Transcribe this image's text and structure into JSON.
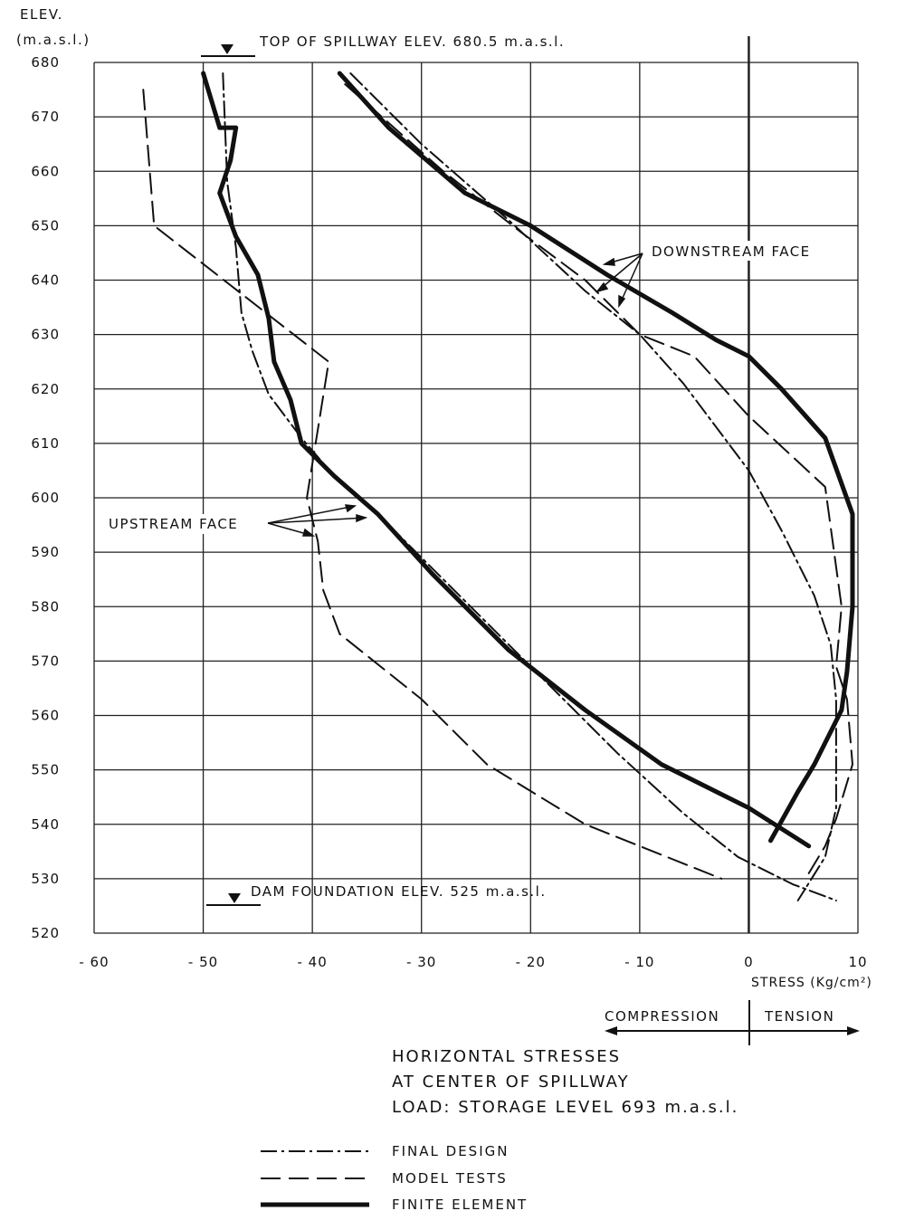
{
  "chart_data": {
    "type": "line",
    "title_lines": [
      "HORIZONTAL STRESSES",
      "AT CENTER OF SPILLWAY",
      "LOAD: STORAGE LEVEL  693 m.a.s.l."
    ],
    "ylabel": [
      "ELEV.",
      "(m.a.s.l.)"
    ],
    "xlabel": "STRESS (Kg/cm²)",
    "xlim": [
      -60,
      10
    ],
    "ylim": [
      520,
      680
    ],
    "xticks": [
      -60,
      -50,
      -40,
      -30,
      -20,
      -10,
      0,
      10
    ],
    "yticks": [
      520,
      530,
      540,
      550,
      560,
      570,
      580,
      590,
      600,
      610,
      620,
      630,
      640,
      650,
      660,
      670,
      680
    ],
    "grid": true,
    "annotations": {
      "top_spillway": "TOP OF SPILLWAY ELEV. 680.5 m.a.s.l.",
      "dam_foundation": "DAM FOUNDATION ELEV. 525 m.a.s.l.",
      "downstream_face": "DOWNSTREAM FACE",
      "upstream_face": "UPSTREAM FACE",
      "compression": "COMPRESSION",
      "tension": "TENSION"
    },
    "legend": [
      {
        "label": "FINAL DESIGN",
        "style": "dashdot"
      },
      {
        "label": "MODEL TESTS",
        "style": "dashed"
      },
      {
        "label": "FINITE ELEMENT",
        "style": "solid-thick"
      }
    ],
    "series": [
      {
        "key": "up-final",
        "style": "dashdot",
        "points": [
          [
            -48.2,
            678
          ],
          [
            -47.8,
            658
          ],
          [
            -47,
            646
          ],
          [
            -46.5,
            634
          ],
          [
            -45.5,
            627
          ],
          [
            -44,
            619
          ],
          [
            -41,
            611
          ],
          [
            -38,
            604
          ],
          [
            -34,
            597
          ],
          [
            -29,
            587
          ],
          [
            -24,
            577
          ],
          [
            -18,
            565
          ],
          [
            -12,
            553
          ],
          [
            -6,
            542
          ],
          [
            -1,
            534
          ],
          [
            4,
            529
          ],
          [
            8,
            526
          ]
        ]
      },
      {
        "key": "up-model",
        "style": "dashed",
        "points": [
          [
            -55.5,
            675
          ],
          [
            -54.5,
            650
          ],
          [
            -38.5,
            625
          ],
          [
            -40.5,
            600
          ],
          [
            -39.5,
            592
          ],
          [
            -39,
            583
          ],
          [
            -37.5,
            575
          ],
          [
            -30,
            563
          ],
          [
            -24,
            551
          ],
          [
            -15,
            540
          ],
          [
            -2.5,
            530
          ]
        ]
      },
      {
        "key": "up-fe",
        "style": "solid-thick",
        "points": [
          [
            -50,
            678
          ],
          [
            -48.5,
            668
          ],
          [
            -47,
            668
          ],
          [
            -47.5,
            662
          ],
          [
            -48.5,
            656
          ],
          [
            -47,
            648
          ],
          [
            -45,
            641
          ],
          [
            -44,
            633
          ],
          [
            -43.5,
            625
          ],
          [
            -42,
            618
          ],
          [
            -41,
            610
          ],
          [
            -38,
            604
          ],
          [
            -34,
            597
          ],
          [
            -29,
            586
          ],
          [
            -22,
            572
          ],
          [
            -15,
            561
          ],
          [
            -8,
            551
          ],
          [
            0,
            543
          ],
          [
            5.5,
            536
          ]
        ]
      },
      {
        "key": "ds-final",
        "style": "dashdot",
        "points": [
          [
            -36.5,
            678
          ],
          [
            -30,
            665
          ],
          [
            -22,
            651
          ],
          [
            -15,
            638
          ],
          [
            -10,
            630
          ],
          [
            -6,
            621
          ],
          [
            -3,
            613
          ],
          [
            0,
            605
          ],
          [
            3,
            594
          ],
          [
            6,
            582
          ],
          [
            7.5,
            573
          ],
          [
            8,
            563
          ],
          [
            8,
            550
          ],
          [
            8,
            543
          ],
          [
            7,
            534
          ],
          [
            4.5,
            526
          ]
        ]
      },
      {
        "key": "ds-model",
        "style": "dashed",
        "points": [
          [
            -37,
            676
          ],
          [
            -28,
            660
          ],
          [
            -21,
            649
          ],
          [
            -15,
            640
          ],
          [
            -10,
            630
          ],
          [
            -5,
            626
          ],
          [
            0,
            615
          ],
          [
            7,
            602
          ],
          [
            8.5,
            580
          ],
          [
            8,
            569
          ],
          [
            9,
            563
          ],
          [
            9.5,
            551
          ],
          [
            8,
            541
          ],
          [
            7,
            536
          ],
          [
            5.5,
            531
          ]
        ]
      },
      {
        "key": "ds-fe",
        "style": "solid-thick",
        "points": [
          [
            -37.5,
            678
          ],
          [
            -33,
            668
          ],
          [
            -26,
            656
          ],
          [
            -20,
            650
          ],
          [
            -13,
            641
          ],
          [
            -7,
            634
          ],
          [
            -3,
            629
          ],
          [
            0,
            626
          ],
          [
            3,
            620
          ],
          [
            7,
            611
          ],
          [
            9.5,
            597
          ],
          [
            9.5,
            580
          ],
          [
            9,
            568
          ],
          [
            8.5,
            561
          ],
          [
            7.5,
            557
          ],
          [
            6,
            551
          ],
          [
            4.5,
            546
          ],
          [
            2,
            537
          ]
        ]
      }
    ]
  }
}
